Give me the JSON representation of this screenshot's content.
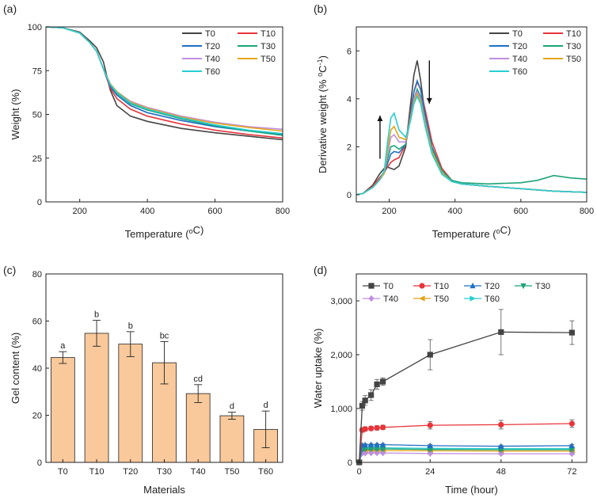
{
  "colors": {
    "T0": "#444444",
    "T10": "#e8353a",
    "T20": "#1f6fc4",
    "T30": "#1ca37a",
    "T40": "#c08ee0",
    "T50": "#e3a51c",
    "T60": "#27cfd2",
    "bar_fill": "#f9c99b"
  },
  "chart_data": [
    {
      "panel": "(a)",
      "type": "line",
      "xlabel": "Temperature (oC)",
      "xlabel_parts": [
        "Temperature (",
        "o",
        "C)"
      ],
      "ylabel": "Weight (%)",
      "xlim": [
        100,
        800
      ],
      "ylim": [
        0,
        100
      ],
      "xticks": [
        200,
        400,
        600,
        800
      ],
      "yticks": [
        0,
        25,
        50,
        75,
        100
      ],
      "legend": [
        "T0",
        "T10",
        "T20",
        "T30",
        "T40",
        "T50",
        "T60"
      ],
      "legend_position": "top-right",
      "series": [
        {
          "name": "T0",
          "x": [
            100,
            150,
            200,
            230,
            250,
            270,
            290,
            310,
            350,
            400,
            500,
            600,
            700,
            800
          ],
          "y": [
            100,
            99.5,
            97,
            92,
            88,
            80,
            64,
            55,
            49,
            46,
            42,
            39.5,
            37.5,
            35.5
          ]
        },
        {
          "name": "T10",
          "x": [
            100,
            150,
            200,
            230,
            250,
            270,
            290,
            310,
            350,
            400,
            500,
            600,
            700,
            800
          ],
          "y": [
            100,
            99.5,
            96.5,
            91,
            86,
            76,
            65,
            59,
            53,
            49,
            44.5,
            41,
            38.5,
            36.5
          ]
        },
        {
          "name": "T20",
          "x": [
            100,
            150,
            200,
            230,
            250,
            270,
            290,
            310,
            350,
            400,
            500,
            600,
            700,
            800
          ],
          "y": [
            100,
            99.5,
            96.5,
            91,
            86,
            76,
            66,
            61,
            55,
            51,
            46.5,
            43,
            40.5,
            38.5
          ]
        },
        {
          "name": "T30",
          "x": [
            100,
            150,
            200,
            230,
            250,
            270,
            290,
            310,
            350,
            400,
            500,
            600,
            700,
            800
          ],
          "y": [
            100,
            99.5,
            96.5,
            91,
            86,
            76,
            67,
            62,
            56,
            52.5,
            47.5,
            43.5,
            40.5,
            38
          ]
        },
        {
          "name": "T40",
          "x": [
            100,
            150,
            200,
            230,
            250,
            270,
            290,
            310,
            350,
            400,
            500,
            600,
            700,
            800
          ],
          "y": [
            100,
            99.5,
            96.5,
            91,
            86,
            76,
            67.5,
            63,
            57.5,
            54,
            49,
            45.5,
            43,
            41.5
          ]
        },
        {
          "name": "T50",
          "x": [
            100,
            150,
            200,
            230,
            250,
            270,
            290,
            310,
            350,
            400,
            500,
            600,
            700,
            800
          ],
          "y": [
            100,
            99.5,
            96.5,
            91,
            86,
            76,
            67.5,
            63,
            57,
            53.5,
            48.5,
            45,
            42.5,
            40.5
          ]
        },
        {
          "name": "T60",
          "x": [
            100,
            150,
            200,
            230,
            250,
            270,
            290,
            310,
            350,
            400,
            500,
            600,
            700,
            800
          ],
          "y": [
            100,
            99.5,
            96.5,
            91,
            86,
            76,
            67,
            62.5,
            56.5,
            53,
            48,
            44,
            41,
            39
          ]
        }
      ]
    },
    {
      "panel": "(b)",
      "type": "line",
      "xlabel": "Temperature (oC)",
      "xlabel_parts": [
        "Temperature (",
        "o",
        "C)"
      ],
      "ylabel": "Derivative weight (% oC-1)",
      "ylabel_parts": [
        "Derivative weight (% ",
        "o",
        "C",
        "-1",
        ")"
      ],
      "xlim": [
        100,
        800
      ],
      "ylim": [
        -0.3,
        7.0
      ],
      "xticks": [
        200,
        400,
        600,
        800
      ],
      "yticks": [
        0,
        2,
        4,
        6
      ],
      "legend": [
        "T0",
        "T10",
        "T20",
        "T30",
        "T40",
        "T50",
        "T60"
      ],
      "legend_position": "top-right",
      "annotations": [
        {
          "type": "arrow-up",
          "x": 172,
          "y_from": 1.5,
          "y_to": 3.3
        },
        {
          "type": "arrow-down",
          "x": 322,
          "y_from": 5.6,
          "y_to": 3.8
        }
      ],
      "series": [
        {
          "name": "T0",
          "x": [
            100,
            120,
            150,
            170,
            185,
            195,
            205,
            215,
            230,
            250,
            265,
            275,
            285,
            295,
            310,
            330,
            360,
            390,
            420,
            500,
            600,
            700,
            800
          ],
          "y": [
            0,
            0.05,
            0.4,
            0.85,
            1.1,
            1.15,
            1.1,
            1.05,
            1.2,
            2.0,
            3.8,
            5.0,
            5.6,
            4.8,
            3.2,
            1.8,
            0.9,
            0.55,
            0.45,
            0.35,
            0.25,
            0.15,
            0.1
          ]
        },
        {
          "name": "T10",
          "x": [
            100,
            120,
            150,
            170,
            185,
            195,
            205,
            215,
            230,
            250,
            265,
            275,
            285,
            295,
            310,
            330,
            360,
            390,
            420,
            500,
            600,
            700,
            800
          ],
          "y": [
            0,
            0.05,
            0.35,
            0.7,
            0.95,
            1.15,
            1.35,
            1.45,
            1.55,
            2.1,
            3.5,
            4.3,
            4.7,
            4.4,
            3.5,
            2.2,
            1.1,
            0.6,
            0.45,
            0.35,
            0.25,
            0.15,
            0.1
          ]
        },
        {
          "name": "T20",
          "x": [
            100,
            120,
            150,
            170,
            185,
            195,
            205,
            215,
            230,
            250,
            265,
            275,
            285,
            295,
            310,
            330,
            360,
            390,
            420,
            500,
            600,
            700,
            800
          ],
          "y": [
            0,
            0.05,
            0.3,
            0.6,
            0.9,
            1.3,
            1.7,
            1.8,
            1.75,
            2.1,
            3.4,
            4.3,
            4.75,
            4.4,
            3.3,
            2.0,
            1.0,
            0.6,
            0.45,
            0.35,
            0.25,
            0.15,
            0.1
          ]
        },
        {
          "name": "T30",
          "x": [
            100,
            120,
            150,
            170,
            185,
            195,
            205,
            215,
            230,
            250,
            265,
            275,
            285,
            295,
            310,
            330,
            360,
            390,
            420,
            500,
            600,
            650,
            700,
            750,
            800
          ],
          "y": [
            0,
            0.05,
            0.3,
            0.6,
            0.9,
            1.5,
            2.0,
            2.05,
            1.9,
            2.1,
            3.2,
            4.0,
            4.4,
            4.1,
            3.1,
            1.9,
            1.0,
            0.6,
            0.5,
            0.45,
            0.5,
            0.6,
            0.8,
            0.7,
            0.65
          ]
        },
        {
          "name": "T40",
          "x": [
            100,
            120,
            150,
            170,
            185,
            195,
            205,
            215,
            230,
            250,
            265,
            275,
            285,
            295,
            310,
            330,
            360,
            390,
            420,
            500,
            600,
            700,
            800
          ],
          "y": [
            0,
            0.05,
            0.3,
            0.6,
            0.9,
            1.7,
            2.4,
            2.5,
            2.2,
            2.2,
            3.2,
            4.0,
            4.3,
            4.0,
            3.0,
            1.8,
            0.9,
            0.55,
            0.45,
            0.35,
            0.25,
            0.15,
            0.1
          ]
        },
        {
          "name": "T50",
          "x": [
            100,
            120,
            150,
            170,
            185,
            195,
            205,
            215,
            230,
            250,
            265,
            275,
            285,
            295,
            310,
            330,
            360,
            390,
            420,
            500,
            600,
            700,
            800
          ],
          "y": [
            0,
            0.05,
            0.3,
            0.6,
            0.9,
            1.9,
            2.7,
            2.85,
            2.4,
            2.3,
            3.2,
            3.9,
            4.2,
            3.9,
            2.9,
            1.8,
            0.9,
            0.55,
            0.45,
            0.35,
            0.25,
            0.15,
            0.1
          ]
        },
        {
          "name": "T60",
          "x": [
            100,
            120,
            150,
            170,
            185,
            195,
            205,
            215,
            230,
            250,
            265,
            275,
            285,
            295,
            310,
            330,
            360,
            390,
            420,
            500,
            600,
            700,
            800
          ],
          "y": [
            0,
            0.05,
            0.3,
            0.6,
            1.0,
            2.2,
            3.2,
            3.4,
            2.7,
            2.4,
            3.1,
            3.8,
            4.1,
            3.8,
            2.8,
            1.7,
            0.85,
            0.55,
            0.45,
            0.35,
            0.25,
            0.15,
            0.1
          ]
        }
      ]
    },
    {
      "panel": "(c)",
      "type": "bar",
      "xlabel": "Materials",
      "ylabel": "Gel content (%)",
      "ylim": [
        0,
        80
      ],
      "yticks": [
        0,
        20,
        40,
        60,
        80
      ],
      "categories": [
        "T0",
        "T10",
        "T20",
        "T30",
        "T40",
        "T50",
        "T60"
      ],
      "values": [
        44.5,
        54.8,
        50.2,
        42.3,
        29.2,
        19.8,
        14.0
      ],
      "errors": [
        2.5,
        5.5,
        5.3,
        9.0,
        3.8,
        1.5,
        7.8
      ],
      "letters": [
        "a",
        "b",
        "b",
        "bc",
        "cd",
        "d",
        "d"
      ]
    },
    {
      "panel": "(d)",
      "type": "line",
      "xlabel": "Time (hour)",
      "ylabel": "Water  uptake (%)",
      "xlim": [
        -1,
        77
      ],
      "ylim": [
        0,
        3500
      ],
      "xticks": [
        0,
        24,
        48,
        72
      ],
      "yticks": [
        0,
        1000,
        2000,
        3000
      ],
      "ytick_labels": [
        "0",
        "1,000",
        "2,000",
        "3,000"
      ],
      "legend": [
        "T0",
        "T10",
        "T20",
        "T30",
        "T40",
        "T50",
        "T60"
      ],
      "legend_position": "top",
      "series": [
        {
          "name": "T0",
          "marker": "square",
          "x": [
            0,
            1,
            2,
            4,
            6,
            8,
            24,
            48,
            72
          ],
          "y": [
            0,
            1050,
            1150,
            1250,
            1450,
            1500,
            2000,
            2420,
            2410
          ],
          "err": [
            0,
            80,
            90,
            100,
            90,
            70,
            280,
            420,
            220
          ]
        },
        {
          "name": "T10",
          "marker": "circle",
          "x": [
            0,
            1,
            2,
            4,
            6,
            8,
            24,
            48,
            72
          ],
          "y": [
            0,
            600,
            620,
            630,
            640,
            650,
            690,
            700,
            720
          ],
          "err": [
            0,
            40,
            40,
            40,
            40,
            40,
            70,
            80,
            70
          ]
        },
        {
          "name": "T20",
          "marker": "triangle-up",
          "x": [
            0,
            1,
            2,
            4,
            6,
            8,
            24,
            48,
            72
          ],
          "y": [
            0,
            320,
            325,
            330,
            330,
            330,
            310,
            300,
            310
          ],
          "err": [
            0,
            20,
            20,
            20,
            20,
            20,
            20,
            20,
            20
          ]
        },
        {
          "name": "T30",
          "marker": "triangle-down",
          "x": [
            0,
            1,
            2,
            4,
            6,
            8,
            24,
            48,
            72
          ],
          "y": [
            0,
            240,
            245,
            250,
            250,
            250,
            240,
            235,
            235
          ],
          "err": [
            0,
            20,
            20,
            20,
            20,
            20,
            20,
            20,
            20
          ]
        },
        {
          "name": "T40",
          "marker": "diamond",
          "x": [
            0,
            1,
            2,
            4,
            6,
            8,
            24,
            48,
            72
          ],
          "y": [
            0,
            170,
            170,
            175,
            175,
            175,
            165,
            160,
            160
          ],
          "err": [
            0,
            15,
            15,
            15,
            15,
            15,
            15,
            15,
            15
          ]
        },
        {
          "name": "T50",
          "marker": "triangle-left",
          "x": [
            0,
            1,
            2,
            4,
            6,
            8,
            24,
            48,
            72
          ],
          "y": [
            0,
            215,
            215,
            220,
            220,
            220,
            215,
            210,
            210
          ],
          "err": [
            0,
            15,
            15,
            15,
            15,
            15,
            15,
            15,
            15
          ]
        },
        {
          "name": "T60",
          "marker": "triangle-right",
          "x": [
            0,
            1,
            2,
            4,
            6,
            8,
            24,
            48,
            72
          ],
          "y": [
            0,
            265,
            270,
            270,
            270,
            270,
            260,
            255,
            255
          ],
          "err": [
            0,
            15,
            15,
            15,
            15,
            15,
            15,
            15,
            15
          ]
        }
      ]
    }
  ]
}
